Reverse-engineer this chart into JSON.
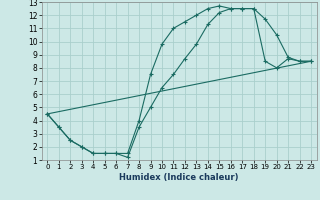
{
  "xlabel": "Humidex (Indice chaleur)",
  "bg_color": "#cce8e6",
  "grid_color": "#aacfcc",
  "line_color": "#1a6b62",
  "xlim": [
    -0.5,
    23.5
  ],
  "ylim": [
    1,
    13
  ],
  "xticks": [
    0,
    1,
    2,
    3,
    4,
    5,
    6,
    7,
    8,
    9,
    10,
    11,
    12,
    13,
    14,
    15,
    16,
    17,
    18,
    19,
    20,
    21,
    22,
    23
  ],
  "yticks": [
    1,
    2,
    3,
    4,
    5,
    6,
    7,
    8,
    9,
    10,
    11,
    12,
    13
  ],
  "line1_x": [
    0,
    1,
    2,
    3,
    4,
    5,
    6,
    7,
    8,
    9,
    10,
    11,
    12,
    13,
    14,
    15,
    16,
    17,
    18,
    19,
    20,
    21,
    22,
    23
  ],
  "line1_y": [
    4.5,
    3.5,
    2.5,
    2.0,
    1.5,
    1.5,
    1.5,
    1.5,
    4.0,
    7.5,
    9.8,
    11.0,
    11.5,
    12.0,
    12.5,
    12.7,
    12.5,
    12.5,
    12.5,
    11.7,
    10.5,
    8.8,
    8.5,
    8.5
  ],
  "line2_x": [
    0,
    1,
    2,
    3,
    4,
    5,
    6,
    7,
    8,
    9,
    10,
    11,
    12,
    13,
    14,
    15,
    16,
    17,
    18,
    19,
    20,
    21,
    22,
    23
  ],
  "line2_y": [
    4.5,
    3.5,
    2.5,
    2.0,
    1.5,
    1.5,
    1.5,
    1.2,
    3.5,
    5.0,
    6.5,
    7.5,
    8.7,
    9.8,
    11.3,
    12.2,
    12.5,
    12.5,
    12.5,
    8.5,
    8.0,
    8.7,
    8.5,
    8.5
  ],
  "line3_x": [
    0,
    23
  ],
  "line3_y": [
    4.5,
    8.5
  ]
}
